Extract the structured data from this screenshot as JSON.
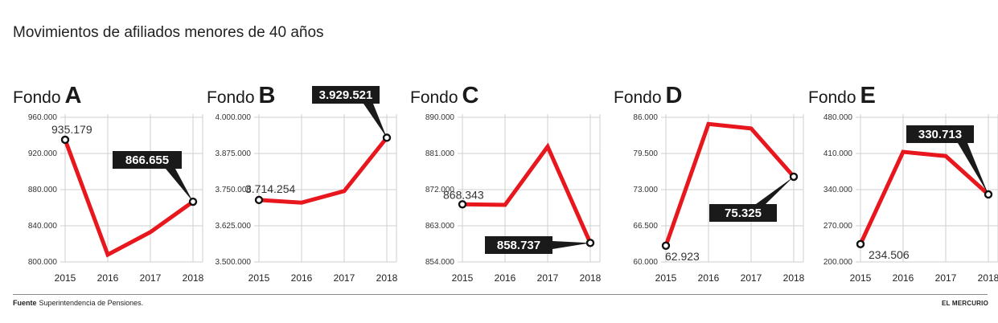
{
  "title": "Movimientos de afiliados menores de 40 años",
  "fondo_word": "Fondo",
  "source_label": "Fuente",
  "source_text": "Superintendencia de Pensiones.",
  "brand": "EL MERCURIO",
  "colors": {
    "line": "#e8161d",
    "grid": "#cfcfcf",
    "callout": "#1a1a1a",
    "callout_text": "#ffffff"
  },
  "chart_data": [
    {
      "type": "line",
      "fondo": "A",
      "categories": [
        "2015",
        "2016",
        "2017",
        "2018"
      ],
      "values": [
        935179,
        808000,
        833000,
        866655
      ],
      "ylim": [
        800000,
        960000
      ],
      "yticks": [
        "960.000",
        "920.000",
        "880.000",
        "840.000",
        "800.000"
      ],
      "start_label": "935.179",
      "end_label": "866.655"
    },
    {
      "type": "line",
      "fondo": "B",
      "categories": [
        "2015",
        "2016",
        "2017",
        "2018"
      ],
      "values": [
        3714254,
        3705000,
        3745000,
        3929521
      ],
      "ylim": [
        3500000,
        4000000
      ],
      "yticks": [
        "4.000.000",
        "3.875.000",
        "3.750.000",
        "3.625.000",
        "3.500.000"
      ],
      "start_label": "3.714.254",
      "end_label": "3.929.521"
    },
    {
      "type": "line",
      "fondo": "C",
      "categories": [
        "2015",
        "2016",
        "2017",
        "2018"
      ],
      "values": [
        868343,
        868200,
        882700,
        858737
      ],
      "ylim": [
        854000,
        890000
      ],
      "yticks": [
        "890.000",
        "881.000",
        "872.000",
        "863.000",
        "854.000"
      ],
      "start_label": "868.343",
      "end_label": "858.737"
    },
    {
      "type": "line",
      "fondo": "D",
      "categories": [
        "2015",
        "2016",
        "2017",
        "2018"
      ],
      "values": [
        62923,
        84800,
        84000,
        75325
      ],
      "ylim": [
        60000,
        86000
      ],
      "yticks": [
        "86.000",
        "79.500",
        "73.000",
        "66.500",
        "60.000"
      ],
      "start_label": "62.923",
      "end_label": "75.325"
    },
    {
      "type": "line",
      "fondo": "E",
      "categories": [
        "2015",
        "2016",
        "2017",
        "2018"
      ],
      "values": [
        234506,
        413000,
        405000,
        330713
      ],
      "ylim": [
        200000,
        480000
      ],
      "yticks": [
        "480.000",
        "410.000",
        "340.000",
        "270.000",
        "200.000"
      ],
      "start_label": "234.506",
      "end_label": "330.713"
    }
  ]
}
